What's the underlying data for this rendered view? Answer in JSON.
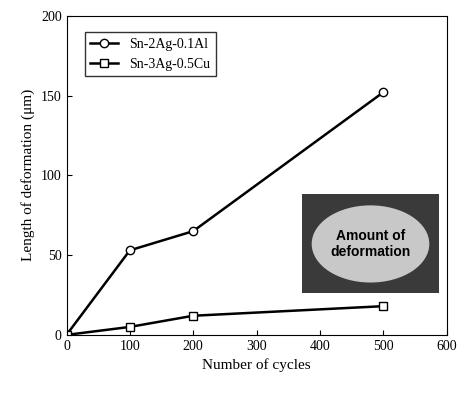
{
  "chart_data": {
    "type": "line",
    "x_label": "Number of cycles",
    "y_label": "Length of deformation (μm)",
    "annotation": "Amount of\ndeformation",
    "xlim": [
      0,
      600
    ],
    "xticks": [
      0,
      100,
      200,
      300,
      400,
      500,
      600
    ],
    "ylim": [
      0,
      200
    ],
    "yticks": [
      0,
      50,
      100,
      150,
      200
    ],
    "legend": "upper left",
    "grid": false,
    "series": [
      {
        "name": "Sn-2Ag-0.1Al",
        "color": "#000000",
        "marker": "circle",
        "line_style": "solid",
        "x": [
          0,
          100,
          200,
          500
        ],
        "values": [
          0,
          53,
          65,
          152
        ]
      },
      {
        "name": "Sn-3Ag-0.5Cu",
        "color": "#000000",
        "marker": "square",
        "line_style": "solid",
        "x": [
          0,
          100,
          200,
          500
        ],
        "values": [
          0,
          5,
          12,
          18
        ]
      }
    ]
  }
}
